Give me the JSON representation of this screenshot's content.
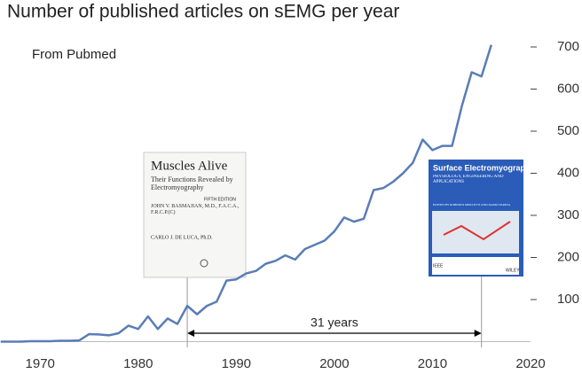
{
  "chart_data": {
    "type": "line",
    "title": "Number of published articles on sEMG per year",
    "subtitle": "From Pubmed",
    "x": [
      1966,
      1967,
      1968,
      1969,
      1970,
      1971,
      1972,
      1973,
      1974,
      1975,
      1976,
      1977,
      1978,
      1979,
      1980,
      1981,
      1982,
      1983,
      1984,
      1985,
      1986,
      1987,
      1988,
      1989,
      1990,
      1991,
      1992,
      1993,
      1994,
      1995,
      1996,
      1997,
      1998,
      1999,
      2000,
      2001,
      2002,
      2003,
      2004,
      2005,
      2006,
      2007,
      2008,
      2009,
      2010,
      2011,
      2012,
      2013,
      2014,
      2015,
      2016
    ],
    "values": [
      0,
      0,
      0,
      1,
      1,
      1,
      2,
      2,
      3,
      18,
      17,
      15,
      20,
      38,
      30,
      60,
      30,
      55,
      42,
      85,
      65,
      85,
      95,
      145,
      148,
      162,
      168,
      185,
      192,
      205,
      195,
      220,
      230,
      240,
      262,
      295,
      285,
      292,
      360,
      365,
      380,
      400,
      425,
      480,
      455,
      465,
      465,
      560,
      640,
      630,
      705
    ],
    "color": "#5a7db5",
    "xlim": [
      1966,
      2020
    ],
    "xticks": [
      1970,
      1980,
      1990,
      2000,
      2010,
      2020
    ],
    "ylim": [
      0,
      700
    ],
    "yticks": [
      100,
      200,
      300,
      400,
      500,
      600,
      700
    ],
    "grid": false,
    "span": {
      "text": "31 years",
      "x": [
        1985,
        2015
      ]
    },
    "books": [
      {
        "title": "Muscles Alive",
        "subtitle": "Their Functions Revealed by Electromyography",
        "edition": "FIFTH EDITION",
        "authors": [
          "JOHN V. BASMAJIAN, M.D., F.A.C.A., F.R.C.P.(C)",
          "CARLO J. DE LUCA, Ph.D."
        ]
      },
      {
        "title": "Surface Electromyography",
        "subtitle": "PHYSIOLOGY, ENGINEERING AND APPLICATIONS",
        "editors": "EDITED BY ROBERTO MERLETTI AND DARIO FARINA",
        "publishers": [
          "IEEE",
          "WILEY"
        ]
      }
    ]
  }
}
